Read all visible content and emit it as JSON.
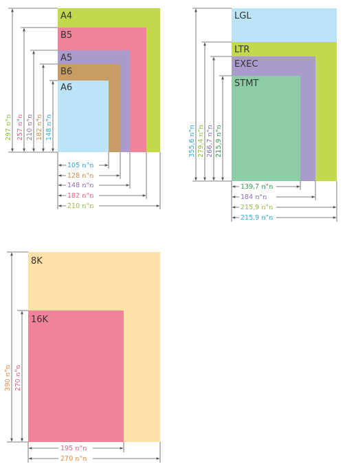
{
  "unit": "מ\"מ",
  "colors": {
    "A4": "#c1d94a",
    "B5": "#ee8399",
    "A5": "#a99ccd",
    "B6": "#c79d65",
    "A6": "#bce3f6",
    "LGL": "#bce3f6",
    "LTR": "#c1d94a",
    "EXEC": "#a99ccd",
    "STMT": "#8ccda6",
    "8K": "#fde1a6",
    "16K": "#ee8399",
    "text_a4": "#8dbf3a",
    "text_b5": "#e85d7f",
    "text_a5": "#8a70b5",
    "text_b6": "#c68e44",
    "text_a6": "#29a9dd",
    "text_lgl": "#29a9dd",
    "text_ltr": "#8dbf3a",
    "text_exec": "#8a70b5",
    "text_stmt": "#2f9a4c",
    "text_8k": "#e88a3a",
    "text_16k": "#e85d7f"
  },
  "groups": {
    "iso": {
      "papers": [
        {
          "id": "a4",
          "name": "A4",
          "w": "210",
          "h": "297"
        },
        {
          "id": "b5",
          "name": "B5",
          "w": "182",
          "h": "257"
        },
        {
          "id": "a5",
          "name": "A5",
          "w": "148",
          "h": "210"
        },
        {
          "id": "b6",
          "name": "B6",
          "w": "128",
          "h": "182"
        },
        {
          "id": "a6",
          "name": "A6",
          "w": "105",
          "h": "148"
        }
      ]
    },
    "us": {
      "papers": [
        {
          "id": "lgl",
          "name": "LGL",
          "w": "215,9",
          "h": "355,6"
        },
        {
          "id": "ltr",
          "name": "LTR",
          "w": "215,9",
          "h": "279,4"
        },
        {
          "id": "exec",
          "name": "EXEC",
          "w": "184",
          "h": "266,7"
        },
        {
          "id": "stmt",
          "name": "STMT",
          "w": "139,7",
          "h": "215,9"
        }
      ]
    },
    "chinese": {
      "papers": [
        {
          "id": "8k",
          "name": "8K",
          "w": "270",
          "h": "390"
        },
        {
          "id": "16k",
          "name": "16K",
          "w": "195",
          "h": "270"
        }
      ]
    }
  }
}
